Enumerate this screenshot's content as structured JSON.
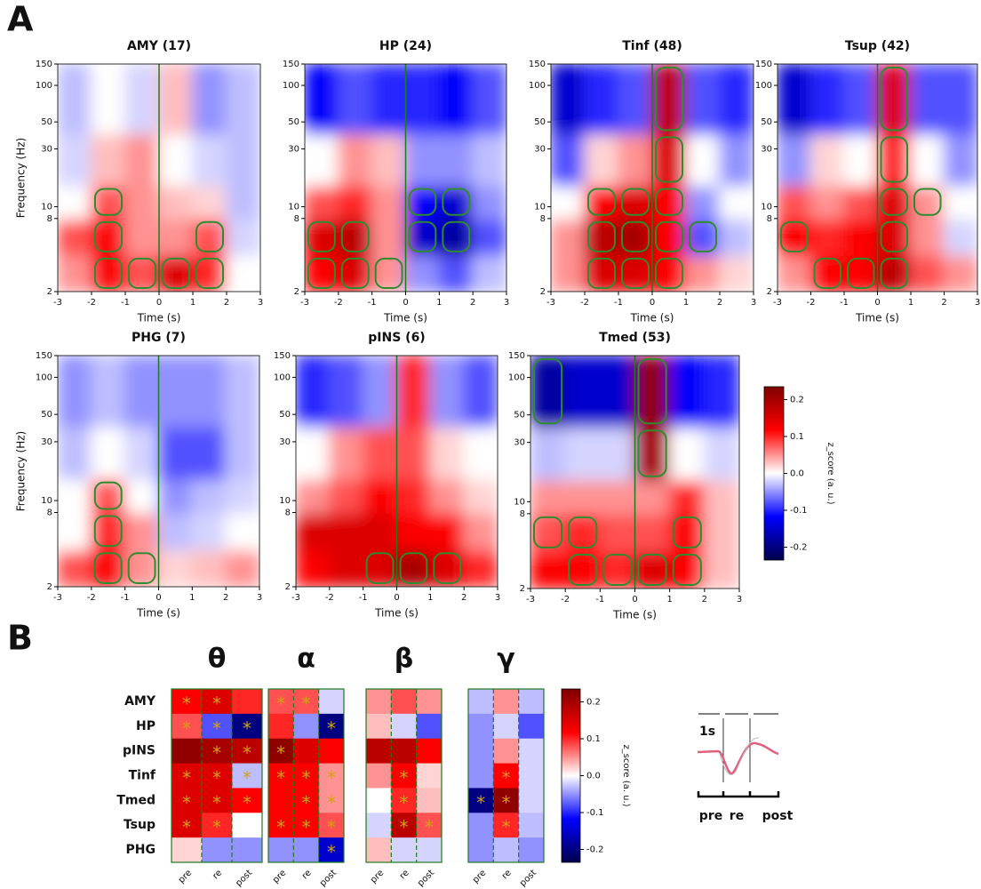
{
  "panel_a_label": "A",
  "panel_b_label": "B",
  "colorbar": {
    "label": "z_score (a. u.)",
    "lim": [
      -0.235,
      0.235
    ],
    "ticks": [
      -0.2,
      -0.1,
      {
        "value": 0,
        "label": "0.0"
      },
      0.1,
      0.2
    ],
    "colors": [
      "#00004c",
      "#0000ff",
      "#ffffff",
      "#ff0000",
      "#800000"
    ]
  },
  "schematic": {
    "scale_label": "1s",
    "phases": [
      "pre",
      "re",
      "post"
    ]
  },
  "chart_data": [
    {
      "type": "spectrogram",
      "title": "AMY (17)",
      "x_label": "Time (s)",
      "y_label": "Frequency (Hz)",
      "xlim": [
        -3,
        3
      ],
      "xticks": [
        -3,
        -2,
        -1,
        0,
        1,
        2,
        3
      ],
      "ylim": [
        2,
        150
      ],
      "yticks": [
        2,
        8,
        10,
        30,
        50,
        100,
        150
      ],
      "log_y": true,
      "event_x": 0,
      "event_color": "#1f7a1f",
      "x_bins": [
        -3,
        -2,
        -1,
        0,
        1,
        2,
        3
      ],
      "y_bins": [
        2,
        4,
        8,
        15,
        40,
        150
      ],
      "values": [
        [
          0.05,
          0.12,
          0.08,
          0.15,
          0.1,
          0.0
        ],
        [
          0.08,
          0.12,
          0.05,
          0.05,
          0.08,
          -0.02
        ],
        [
          0.0,
          0.08,
          0.05,
          0.03,
          0.02,
          -0.03
        ],
        [
          -0.02,
          0.03,
          0.05,
          0.0,
          -0.02,
          -0.03
        ],
        [
          -0.03,
          0.0,
          -0.02,
          0.03,
          -0.05,
          -0.03
        ]
      ],
      "significant": [
        [
          false,
          true,
          true,
          true,
          true,
          false
        ],
        [
          false,
          true,
          false,
          false,
          true,
          false
        ],
        [
          false,
          true,
          false,
          false,
          false,
          false
        ],
        [
          false,
          false,
          false,
          false,
          false,
          false
        ],
        [
          false,
          false,
          false,
          false,
          false,
          false
        ]
      ]
    },
    {
      "type": "spectrogram",
      "title": "HP (24)",
      "x_label": "Time (s)",
      "xlim": [
        -3,
        3
      ],
      "xticks": [
        -3,
        -2,
        -1,
        0,
        1,
        2,
        3
      ],
      "ylim": [
        2,
        150
      ],
      "yticks": [
        2,
        8,
        10,
        30,
        50,
        100,
        150
      ],
      "log_y": true,
      "event_x": 0,
      "event_color": "#1f7a1f",
      "x_bins": [
        -3,
        -2,
        -1,
        0,
        1,
        2,
        3
      ],
      "y_bins": [
        2,
        4,
        8,
        15,
        40,
        150
      ],
      "values": [
        [
          0.12,
          0.15,
          0.05,
          -0.05,
          -0.08,
          -0.03
        ],
        [
          0.15,
          0.18,
          0.05,
          -0.15,
          -0.18,
          -0.08
        ],
        [
          0.08,
          0.1,
          0.05,
          -0.12,
          -0.15,
          -0.05
        ],
        [
          0.0,
          0.05,
          0.03,
          -0.05,
          -0.05,
          -0.03
        ],
        [
          -0.12,
          -0.08,
          -0.1,
          -0.1,
          -0.12,
          -0.08
        ]
      ],
      "significant": [
        [
          true,
          true,
          true,
          false,
          false,
          false
        ],
        [
          true,
          true,
          false,
          true,
          true,
          false
        ],
        [
          false,
          false,
          false,
          true,
          true,
          false
        ],
        [
          false,
          false,
          false,
          false,
          false,
          false
        ],
        [
          false,
          false,
          false,
          false,
          false,
          false
        ]
      ]
    },
    {
      "type": "spectrogram",
      "title": "Tinf (48)",
      "x_label": "Time (s)",
      "xlim": [
        -3,
        3
      ],
      "xticks": [
        -3,
        -2,
        -1,
        0,
        1,
        2,
        3
      ],
      "ylim": [
        2,
        150
      ],
      "yticks": [
        2,
        8,
        10,
        30,
        50,
        100,
        150
      ],
      "log_y": true,
      "event_x": 0,
      "event_color": "#1f7a1f",
      "x_bins": [
        -3,
        -2,
        -1,
        0,
        1,
        2,
        3
      ],
      "y_bins": [
        2,
        4,
        8,
        15,
        40,
        150
      ],
      "values": [
        [
          0.05,
          0.15,
          0.15,
          0.12,
          0.05,
          0.02
        ],
        [
          0.05,
          0.18,
          0.2,
          0.12,
          -0.08,
          -0.03
        ],
        [
          0.0,
          0.12,
          0.15,
          0.12,
          -0.05,
          0.0
        ],
        [
          -0.08,
          0.02,
          0.05,
          0.15,
          0.0,
          -0.05
        ],
        [
          -0.15,
          -0.1,
          -0.08,
          0.18,
          -0.08,
          -0.1
        ]
      ],
      "significant": [
        [
          false,
          true,
          true,
          true,
          false,
          false
        ],
        [
          false,
          true,
          true,
          true,
          true,
          false
        ],
        [
          false,
          true,
          true,
          true,
          false,
          false
        ],
        [
          false,
          false,
          false,
          true,
          false,
          false
        ],
        [
          false,
          false,
          false,
          true,
          false,
          false
        ]
      ]
    },
    {
      "type": "spectrogram",
      "title": "Tsup (42)",
      "x_label": "Time (s)",
      "xlim": [
        -3,
        3
      ],
      "xticks": [
        -3,
        -2,
        -1,
        0,
        1,
        2,
        3
      ],
      "ylim": [
        2,
        150
      ],
      "yticks": [
        2,
        8,
        10,
        30,
        50,
        100,
        150
      ],
      "log_y": true,
      "event_x": 0,
      "event_color": "#1f7a1f",
      "x_bins": [
        -3,
        -2,
        -1,
        0,
        1,
        2,
        3
      ],
      "y_bins": [
        2,
        4,
        8,
        15,
        40,
        150
      ],
      "values": [
        [
          0.05,
          0.12,
          0.12,
          0.18,
          0.08,
          0.05
        ],
        [
          0.12,
          0.1,
          0.12,
          0.15,
          0.05,
          -0.02
        ],
        [
          0.08,
          0.05,
          0.08,
          0.15,
          0.05,
          0.0
        ],
        [
          -0.05,
          0.02,
          0.0,
          0.1,
          0.0,
          -0.05
        ],
        [
          -0.15,
          -0.1,
          -0.08,
          0.15,
          -0.08,
          -0.08
        ]
      ],
      "significant": [
        [
          false,
          true,
          true,
          true,
          false,
          false
        ],
        [
          true,
          false,
          false,
          true,
          false,
          false
        ],
        [
          false,
          false,
          false,
          true,
          true,
          false
        ],
        [
          false,
          false,
          false,
          true,
          false,
          false
        ],
        [
          false,
          false,
          false,
          true,
          false,
          false
        ]
      ]
    },
    {
      "type": "spectrogram",
      "title": "PHG (7)",
      "x_label": "Time (s)",
      "y_label": "Frequency (Hz)",
      "xlim": [
        -3,
        3
      ],
      "xticks": [
        -3,
        -2,
        -1,
        0,
        1,
        2,
        3
      ],
      "ylim": [
        2,
        150
      ],
      "yticks": [
        2,
        8,
        10,
        30,
        50,
        100,
        150
      ],
      "log_y": true,
      "event_x": 0,
      "event_color": "#1f7a1f",
      "x_bins": [
        -3,
        -2,
        -1,
        0,
        1,
        2,
        3
      ],
      "y_bins": [
        2,
        4,
        8,
        15,
        40,
        150
      ],
      "values": [
        [
          0.08,
          0.12,
          0.05,
          0.02,
          0.03,
          0.05
        ],
        [
          0.0,
          0.1,
          0.05,
          -0.03,
          -0.02,
          0.0
        ],
        [
          0.0,
          0.08,
          0.0,
          -0.05,
          -0.03,
          -0.02
        ],
        [
          -0.03,
          0.0,
          -0.02,
          -0.08,
          -0.08,
          -0.03
        ],
        [
          -0.05,
          -0.03,
          -0.05,
          -0.05,
          -0.05,
          -0.03
        ]
      ],
      "significant": [
        [
          false,
          true,
          true,
          false,
          false,
          false
        ],
        [
          false,
          true,
          false,
          false,
          false,
          false
        ],
        [
          false,
          true,
          false,
          false,
          false,
          false
        ],
        [
          false,
          false,
          false,
          false,
          false,
          false
        ],
        [
          false,
          false,
          false,
          false,
          false,
          false
        ]
      ]
    },
    {
      "type": "spectrogram",
      "title": "pINS (6)",
      "x_label": "Time (s)",
      "xlim": [
        -3,
        3
      ],
      "xticks": [
        -3,
        -2,
        -1,
        0,
        1,
        2,
        3
      ],
      "ylim": [
        2,
        150
      ],
      "yticks": [
        2,
        8,
        10,
        30,
        50,
        100,
        150
      ],
      "log_y": true,
      "event_x": 0,
      "event_color": "#1f7a1f",
      "x_bins": [
        -3,
        -2,
        -1,
        0,
        1,
        2,
        3
      ],
      "y_bins": [
        2,
        4,
        8,
        15,
        40,
        150
      ],
      "values": [
        [
          0.12,
          0.15,
          0.15,
          0.2,
          0.15,
          0.1
        ],
        [
          0.15,
          0.15,
          0.15,
          0.12,
          0.12,
          0.05
        ],
        [
          0.05,
          0.08,
          0.12,
          0.1,
          0.05,
          0.02
        ],
        [
          0.0,
          0.05,
          0.08,
          0.08,
          0.02,
          0.0
        ],
        [
          -0.1,
          -0.08,
          -0.05,
          0.1,
          -0.05,
          -0.08
        ]
      ],
      "significant": [
        [
          false,
          false,
          true,
          true,
          true,
          false
        ],
        [
          false,
          false,
          false,
          false,
          false,
          false
        ],
        [
          false,
          false,
          false,
          false,
          false,
          false
        ],
        [
          false,
          false,
          false,
          false,
          false,
          false
        ],
        [
          false,
          false,
          false,
          false,
          false,
          false
        ]
      ]
    },
    {
      "type": "spectrogram",
      "title": "Tmed (53)",
      "x_label": "Time (s)",
      "xlim": [
        -3,
        3
      ],
      "xticks": [
        -3,
        -2,
        -1,
        0,
        1,
        2,
        3
      ],
      "ylim": [
        2,
        150
      ],
      "yticks": [
        2,
        8,
        10,
        30,
        50,
        100,
        150
      ],
      "log_y": true,
      "event_x": 0,
      "event_color": "#1f7a1f",
      "x_bins": [
        -3,
        -2,
        -1,
        0,
        1,
        2,
        3
      ],
      "y_bins": [
        2,
        4,
        8,
        15,
        40,
        150
      ],
      "values": [
        [
          0.12,
          0.12,
          0.1,
          0.15,
          0.12,
          0.03
        ],
        [
          0.08,
          0.1,
          0.08,
          0.08,
          0.12,
          0.03
        ],
        [
          0.05,
          0.05,
          0.05,
          0.05,
          0.1,
          0.03
        ],
        [
          -0.03,
          -0.02,
          -0.02,
          0.2,
          0.0,
          -0.02
        ],
        [
          -0.18,
          -0.15,
          -0.15,
          0.22,
          -0.12,
          -0.1
        ]
      ],
      "significant": [
        [
          false,
          true,
          true,
          true,
          true,
          false
        ],
        [
          true,
          true,
          false,
          false,
          true,
          false
        ],
        [
          false,
          false,
          false,
          false,
          false,
          false
        ],
        [
          false,
          false,
          false,
          true,
          false,
          false
        ],
        [
          true,
          false,
          false,
          true,
          false,
          false
        ]
      ]
    },
    {
      "type": "matrix",
      "title": "θ",
      "categories": [
        "AMY",
        "HP",
        "pINS",
        "Tinf",
        "Tmed",
        "Tsup",
        "PHG"
      ],
      "columns": [
        "pre",
        "re",
        "post"
      ],
      "star_color": "#d4a017",
      "border_color": "#1f7a1f",
      "values": [
        [
          0.12,
          0.15,
          0.1
        ],
        [
          0.08,
          -0.08,
          -0.2
        ],
        [
          0.22,
          0.2,
          0.18
        ],
        [
          0.15,
          0.15,
          -0.03
        ],
        [
          0.15,
          0.15,
          0.12
        ],
        [
          0.15,
          0.1,
          0.0
        ],
        [
          0.02,
          -0.05,
          -0.05
        ]
      ],
      "stars": [
        [
          "*",
          "*",
          null
        ],
        [
          "*",
          "*",
          "*"
        ],
        [
          null,
          "*",
          "*"
        ],
        [
          "*",
          "*",
          "*"
        ],
        [
          "*",
          "*",
          "*"
        ],
        [
          "*",
          "*",
          null
        ],
        [
          null,
          null,
          null
        ]
      ]
    },
    {
      "type": "matrix",
      "title": "α",
      "star_color": "#d4a017",
      "border_color": "#1f7a1f",
      "values": [
        [
          0.08,
          0.08,
          -0.02
        ],
        [
          0.1,
          -0.05,
          -0.2
        ],
        [
          0.22,
          0.15,
          0.12
        ],
        [
          0.12,
          0.12,
          0.05
        ],
        [
          0.12,
          0.12,
          0.05
        ],
        [
          0.12,
          0.12,
          0.08
        ],
        [
          -0.05,
          -0.05,
          -0.15
        ]
      ],
      "stars": [
        [
          "*",
          "*",
          null
        ],
        [
          null,
          null,
          "*"
        ],
        [
          "*",
          null,
          null
        ],
        [
          "*",
          "*",
          "*"
        ],
        [
          null,
          "*",
          "*"
        ],
        [
          "*",
          "*",
          "*"
        ],
        [
          null,
          null,
          "*"
        ]
      ]
    },
    {
      "type": "matrix",
      "title": "β",
      "star_color": "#d4a017",
      "border_color": "#1f7a1f",
      "values": [
        [
          0.05,
          0.08,
          0.05
        ],
        [
          0.03,
          -0.02,
          -0.08
        ],
        [
          0.18,
          0.18,
          0.12
        ],
        [
          0.05,
          0.12,
          0.02
        ],
        [
          0.0,
          0.1,
          0.03
        ],
        [
          -0.02,
          0.18,
          0.08
        ],
        [
          0.03,
          -0.02,
          -0.02
        ]
      ],
      "stars": [
        [
          null,
          null,
          null
        ],
        [
          null,
          null,
          null
        ],
        [
          null,
          null,
          null
        ],
        [
          null,
          "*",
          null
        ],
        [
          null,
          "*",
          null
        ],
        [
          null,
          "*",
          "*"
        ],
        [
          null,
          null,
          null
        ]
      ]
    },
    {
      "type": "matrix",
      "title": "γ",
      "star_color": "#d4a017",
      "border_color": "#1f7a1f",
      "values": [
        [
          -0.03,
          0.05,
          -0.03
        ],
        [
          -0.05,
          -0.02,
          -0.08
        ],
        [
          -0.05,
          0.05,
          -0.02
        ],
        [
          -0.05,
          0.12,
          -0.02
        ],
        [
          -0.2,
          0.22,
          -0.02
        ],
        [
          -0.05,
          0.1,
          -0.03
        ],
        [
          -0.05,
          -0.03,
          -0.05
        ]
      ],
      "stars": [
        [
          null,
          null,
          null
        ],
        [
          null,
          null,
          null
        ],
        [
          null,
          null,
          null
        ],
        [
          null,
          "*",
          null
        ],
        [
          "*",
          "*",
          null
        ],
        [
          null,
          "*",
          null
        ],
        [
          null,
          null,
          null
        ]
      ]
    }
  ]
}
